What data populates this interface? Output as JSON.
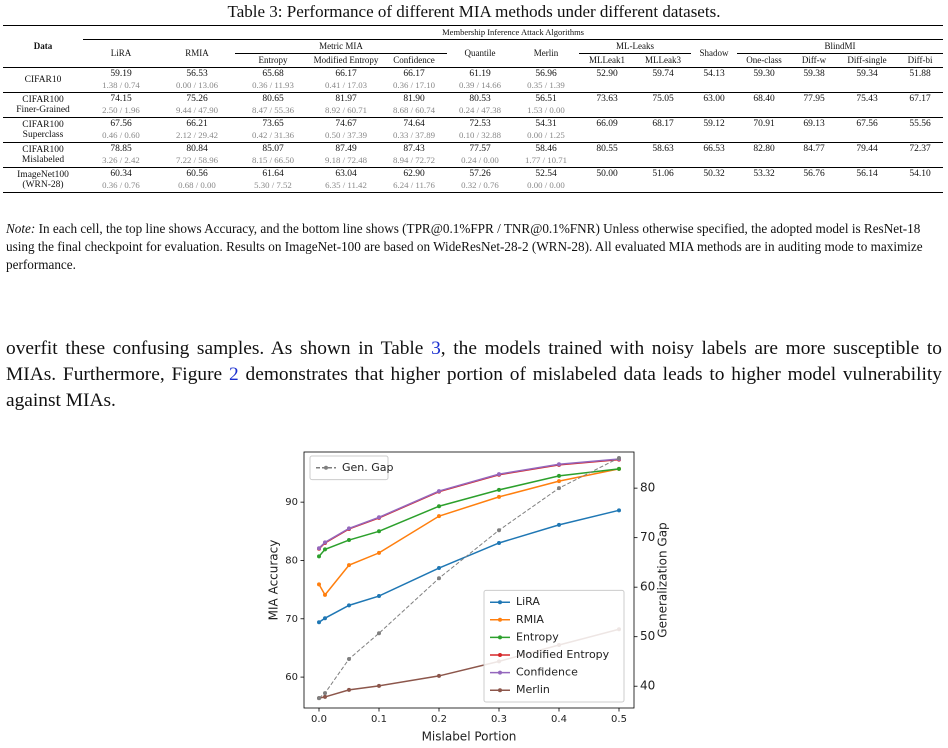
{
  "table": {
    "caption": "Table 3: Performance of different MIA methods under different datasets.",
    "data_header": "Data",
    "algorithms_header": "Membership Inference Attack Algorithms",
    "columns": [
      "LiRA",
      "RMIA",
      {
        "group": "Metric MIA",
        "columns": [
          "Entropy",
          "Modified Entropy",
          "Confidence"
        ]
      },
      "Quantile",
      "Merlin",
      {
        "group": "ML-Leaks",
        "columns": [
          "MLLeak1",
          "MLLeak3"
        ]
      },
      "Shadow",
      {
        "group": "BlindMI",
        "columns": [
          "One-class",
          "Diff-w",
          "Diff-single",
          "Diff-bi"
        ]
      }
    ],
    "rows": [
      {
        "data": [
          "CIFAR10"
        ],
        "values": [
          "59.19",
          "56.53",
          "65.68",
          "66.17",
          "66.17",
          "61.19",
          "56.96",
          "52.90",
          "59.74",
          "54.13",
          "59.30",
          "59.38",
          "59.34",
          "51.88"
        ],
        "rates": [
          "1.38 / 0.74",
          "0.00 / 13.06",
          "0.36 / 11.93",
          "0.41 / 17.03",
          "0.36 / 17.10",
          "0.39 / 14.66",
          "0.35 / 1.39"
        ]
      },
      {
        "data": [
          "CIFAR100",
          "Finer-Grained"
        ],
        "values": [
          "74.15",
          "75.26",
          "80.65",
          "81.97",
          "81.90",
          "80.53",
          "56.51",
          "73.63",
          "75.05",
          "63.00",
          "68.40",
          "77.95",
          "75.43",
          "67.17"
        ],
        "rates": [
          "2.50 / 1.96",
          "9.44 / 47.90",
          "8.47 / 55.36",
          "8.92 / 60.71",
          "8.68 / 60.74",
          "0.24 / 47.38",
          "1.53 / 0.00"
        ]
      },
      {
        "data": [
          "CIFAR100",
          "Superclass"
        ],
        "values": [
          "67.56",
          "66.21",
          "73.65",
          "74.67",
          "74.64",
          "72.53",
          "54.31",
          "66.09",
          "68.17",
          "59.12",
          "70.91",
          "69.13",
          "67.56",
          "55.56"
        ],
        "rates": [
          "0.46 / 0.60",
          "2.12 / 29.42",
          "0.42 / 31.36",
          "0.50 / 37.39",
          "0.33 / 37.89",
          "0.10 / 32.88",
          "0.00 / 1.25"
        ]
      },
      {
        "data": [
          "CIFAR100",
          "Mislabeled"
        ],
        "values": [
          "78.85",
          "80.84",
          "85.07",
          "87.49",
          "87.43",
          "77.57",
          "58.46",
          "80.55",
          "58.63",
          "66.53",
          "82.80",
          "84.77",
          "79.44",
          "72.37"
        ],
        "rates": [
          "3.26 / 2.42",
          "7.22 / 58.96",
          "8.15 / 66.50",
          "9.18 / 72.48",
          "8.94 / 72.72",
          "0.24 / 0.00",
          "1.77 / 10.71"
        ]
      },
      {
        "data": [
          "ImageNet100",
          "(WRN-28)"
        ],
        "values": [
          "60.34",
          "60.56",
          "61.64",
          "63.04",
          "62.90",
          "57.26",
          "52.54",
          "50.00",
          "51.06",
          "50.32",
          "53.32",
          "56.76",
          "56.14",
          "54.10"
        ],
        "rates": [
          "0.36 / 0.76",
          "0.68 / 0.00",
          "5.30 / 7.52",
          "6.35 / 11.42",
          "6.24 / 11.76",
          "0.32 / 0.76",
          "0.00 / 0.00"
        ]
      }
    ]
  },
  "note": {
    "label": "Note:",
    "text": "In each cell, the top line shows Accuracy, and the bottom line shows (TPR@0.1%FPR / TNR@0.1%FNR) Unless otherwise specified, the adopted model is ResNet-18 using the final checkpoint for evaluation. Results on ImageNet-100 are based on WideResNet-28-2 (WRN-28). All evaluated MIA methods are in auditing mode to maximize performance."
  },
  "paragraph": [
    "overfit these confusing samples. As shown in Table ",
    "3",
    ", the models trained with noisy labels are more susceptible to MIAs. Furthermore, Figure ",
    "2",
    " demonstrates that higher portion of mislabeled data leads to higher model vulnerability against MIAs."
  ],
  "chart_data": {
    "type": "line",
    "xlabel": "Mislabel Portion",
    "ylabel": "MIA Accuracy",
    "y2label": "Generalization Gap",
    "x": [
      0,
      0.01,
      0.05,
      0.1,
      0.2,
      0.3,
      0.4,
      0.5
    ],
    "xlim": [
      -0.025,
      0.525
    ],
    "xticks": [
      {
        "value": 0,
        "label": "0.0"
      },
      0.1,
      0.2,
      0.3,
      0.4,
      0.5
    ],
    "ylim": [
      54.7,
      98.6
    ],
    "yticks": [
      60,
      70,
      80,
      90
    ],
    "y2lim": [
      35.6,
      87.3
    ],
    "y2ticks": [
      40,
      50,
      60,
      70,
      80
    ],
    "grid": false,
    "legend_loc": "lower right",
    "y2_legend_loc": "upper left",
    "series": [
      {
        "name": "LiRA",
        "color": "#1f77b4",
        "values": [
          69.4,
          70.1,
          72.3,
          73.9,
          78.7,
          83.0,
          86.1,
          88.6
        ]
      },
      {
        "name": "RMIA",
        "color": "#ff7f0e",
        "values": [
          75.9,
          74.1,
          79.2,
          81.3,
          87.6,
          90.9,
          93.6,
          95.7
        ]
      },
      {
        "name": "Entropy",
        "color": "#2ca02c",
        "values": [
          80.7,
          81.9,
          83.5,
          85.0,
          89.3,
          92.1,
          94.5,
          95.7
        ]
      },
      {
        "name": "Modified Entropy",
        "color": "#d62728",
        "values": [
          82.0,
          83.0,
          85.4,
          87.3,
          91.8,
          94.7,
          96.4,
          97.3
        ]
      },
      {
        "name": "Confidence",
        "color": "#9467bd",
        "values": [
          82.1,
          83.1,
          85.5,
          87.4,
          91.9,
          94.8,
          96.5,
          97.4
        ]
      },
      {
        "name": "Merlin",
        "color": "#8c564b",
        "values": [
          56.4,
          56.6,
          57.8,
          58.5,
          60.2,
          62.7,
          65.5,
          68.2
        ]
      },
      {
        "name": "Gen. Gap",
        "color": "#7f7f7f",
        "linestyle": "dashed",
        "axis": "y2",
        "values": [
          37.6,
          38.6,
          45.5,
          50.7,
          61.8,
          71.5,
          80.0,
          86.1
        ]
      }
    ]
  }
}
